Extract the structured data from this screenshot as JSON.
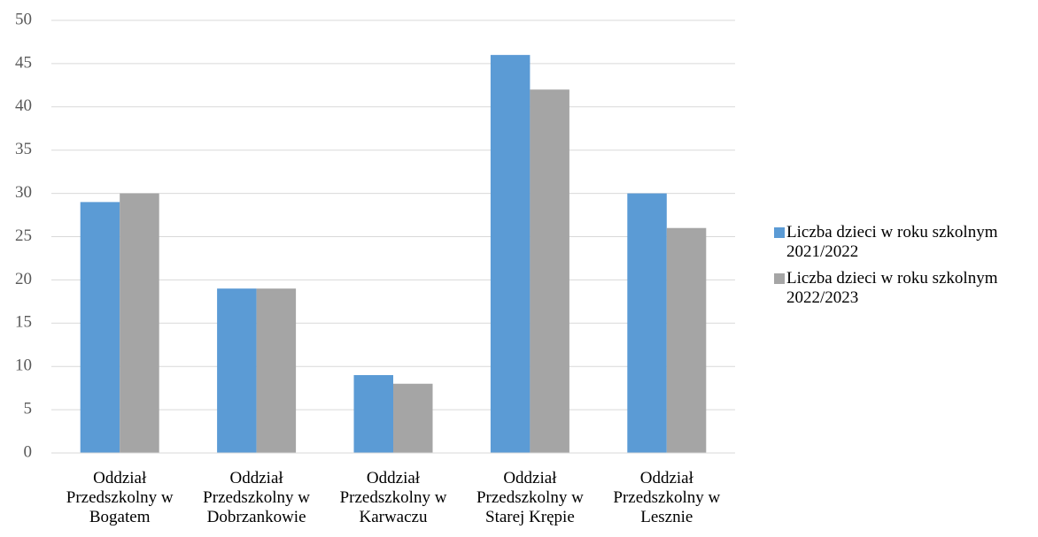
{
  "chart_data": {
    "type": "bar",
    "categories": [
      "Oddział Przedszkolny w Bogatem",
      "Oddział Przedszkolny w Dobrzankowie",
      "Oddział Przedszkolny w Karwaczu",
      "Oddział Przedszkolny w Starej Krępie",
      "Oddział Przedszkolny w Lesznie"
    ],
    "series": [
      {
        "name": "Liczba dzieci w roku szkolnym 2021/2022",
        "color": "#5b9bd5",
        "values": [
          29,
          19,
          9,
          46,
          30
        ]
      },
      {
        "name": "Liczba dzieci w roku szkolnym 2022/2023",
        "color": "#a5a5a5",
        "values": [
          30,
          19,
          8,
          42,
          26
        ]
      }
    ],
    "ylim": [
      0,
      50
    ],
    "yticks": [
      0,
      5,
      10,
      15,
      20,
      25,
      30,
      35,
      40,
      45,
      50
    ],
    "grid": true,
    "legend": "right"
  }
}
